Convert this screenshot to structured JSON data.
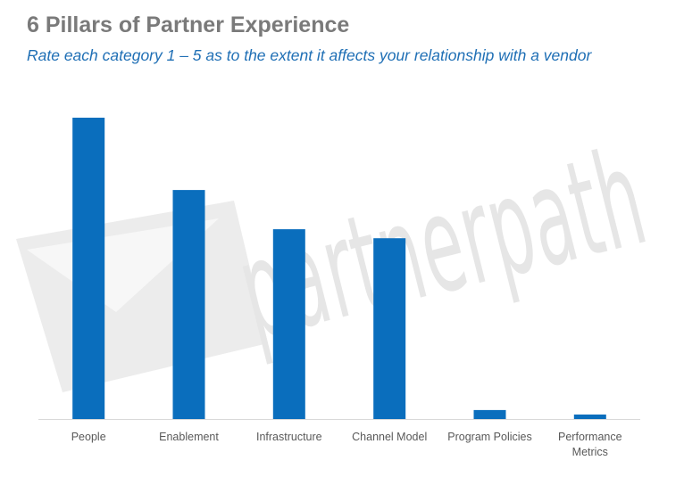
{
  "title": "6 Pillars of Partner Experience",
  "subtitle": "Rate each category 1 – 5 as to the extent it affects your relationship with a vendor",
  "watermark": {
    "text": "partnerpath",
    "color": "#e6e6e6"
  },
  "colors": {
    "bar": "#0a6ebd",
    "axis": "#d9d9d9",
    "title": "#7a7a7a",
    "subtitle": "#1f6fb5",
    "tick_label": "#595959"
  },
  "chart_data": {
    "type": "bar",
    "title": "6 Pillars of Partner Experience",
    "subtitle": "Rate each category 1 – 5 as to the extent it affects your relationship with a vendor",
    "categories": [
      "People",
      "Enablement",
      "Infrastructure",
      "Channel Model",
      "Program Policies",
      "Performance Metrics"
    ],
    "category_lines": [
      [
        "People"
      ],
      [
        "Enablement"
      ],
      [
        "Infrastructure"
      ],
      [
        "Channel Model"
      ],
      [
        "Program Policies"
      ],
      [
        "Performance",
        "Metrics"
      ]
    ],
    "values": [
      100,
      76,
      63,
      60,
      3,
      1.5
    ],
    "ylim": [
      0,
      100
    ],
    "xlabel": "",
    "ylabel": "",
    "grid": false,
    "legend": "none",
    "y_axis_visible": false
  }
}
